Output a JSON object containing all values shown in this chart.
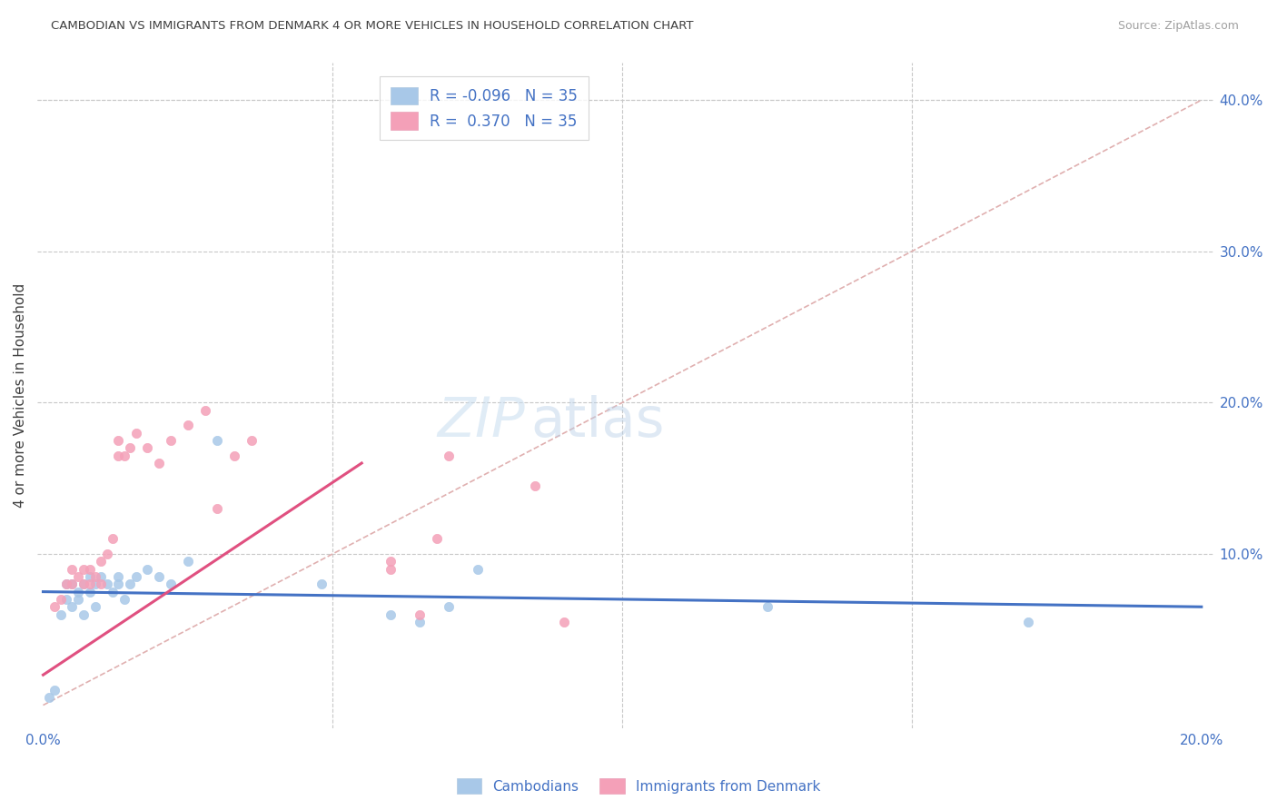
{
  "title": "CAMBODIAN VS IMMIGRANTS FROM DENMARK 4 OR MORE VEHICLES IN HOUSEHOLD CORRELATION CHART",
  "source": "Source: ZipAtlas.com",
  "ylabel": "4 or more Vehicles in Household",
  "xmin": 0.0,
  "xmax": 0.2,
  "ymin": 0.0,
  "ymax": 0.42,
  "legend_r_camb": "R = -0.096",
  "legend_n_camb": "N = 35",
  "legend_r_denm": "R =  0.370",
  "legend_n_denm": "N = 35",
  "watermark_zip": "ZIP",
  "watermark_atlas": "atlas",
  "cambodian_color": "#a8c8e8",
  "denmark_color": "#f4a0b8",
  "line_cambodian_color": "#4472c4",
  "line_denmark_color": "#e05080",
  "diagonal_color": "#e0b0b0",
  "grid_color": "#c8c8c8",
  "tick_color": "#4472c4",
  "title_color": "#404040",
  "source_color": "#a0a0a0",
  "ylabel_color": "#404040",
  "cambodian_x": [
    0.001,
    0.002,
    0.003,
    0.004,
    0.004,
    0.005,
    0.005,
    0.006,
    0.006,
    0.007,
    0.007,
    0.008,
    0.008,
    0.009,
    0.009,
    0.01,
    0.011,
    0.012,
    0.013,
    0.013,
    0.014,
    0.015,
    0.016,
    0.018,
    0.02,
    0.022,
    0.025,
    0.03,
    0.048,
    0.06,
    0.065,
    0.07,
    0.075,
    0.125,
    0.17
  ],
  "cambodian_y": [
    0.005,
    0.01,
    0.06,
    0.07,
    0.08,
    0.065,
    0.08,
    0.07,
    0.075,
    0.08,
    0.06,
    0.075,
    0.085,
    0.08,
    0.065,
    0.085,
    0.08,
    0.075,
    0.08,
    0.085,
    0.07,
    0.08,
    0.085,
    0.09,
    0.085,
    0.08,
    0.095,
    0.175,
    0.08,
    0.06,
    0.055,
    0.065,
    0.09,
    0.065,
    0.055
  ],
  "denmark_x": [
    0.002,
    0.003,
    0.004,
    0.005,
    0.005,
    0.006,
    0.007,
    0.007,
    0.008,
    0.008,
    0.009,
    0.01,
    0.01,
    0.011,
    0.012,
    0.013,
    0.013,
    0.014,
    0.015,
    0.016,
    0.018,
    0.02,
    0.022,
    0.025,
    0.028,
    0.03,
    0.033,
    0.036,
    0.06,
    0.068,
    0.06,
    0.065,
    0.07,
    0.085,
    0.09
  ],
  "denmark_y": [
    0.065,
    0.07,
    0.08,
    0.08,
    0.09,
    0.085,
    0.08,
    0.09,
    0.08,
    0.09,
    0.085,
    0.08,
    0.095,
    0.1,
    0.11,
    0.165,
    0.175,
    0.165,
    0.17,
    0.18,
    0.17,
    0.16,
    0.175,
    0.185,
    0.195,
    0.13,
    0.165,
    0.175,
    0.09,
    0.11,
    0.095,
    0.06,
    0.165,
    0.145,
    0.055
  ]
}
